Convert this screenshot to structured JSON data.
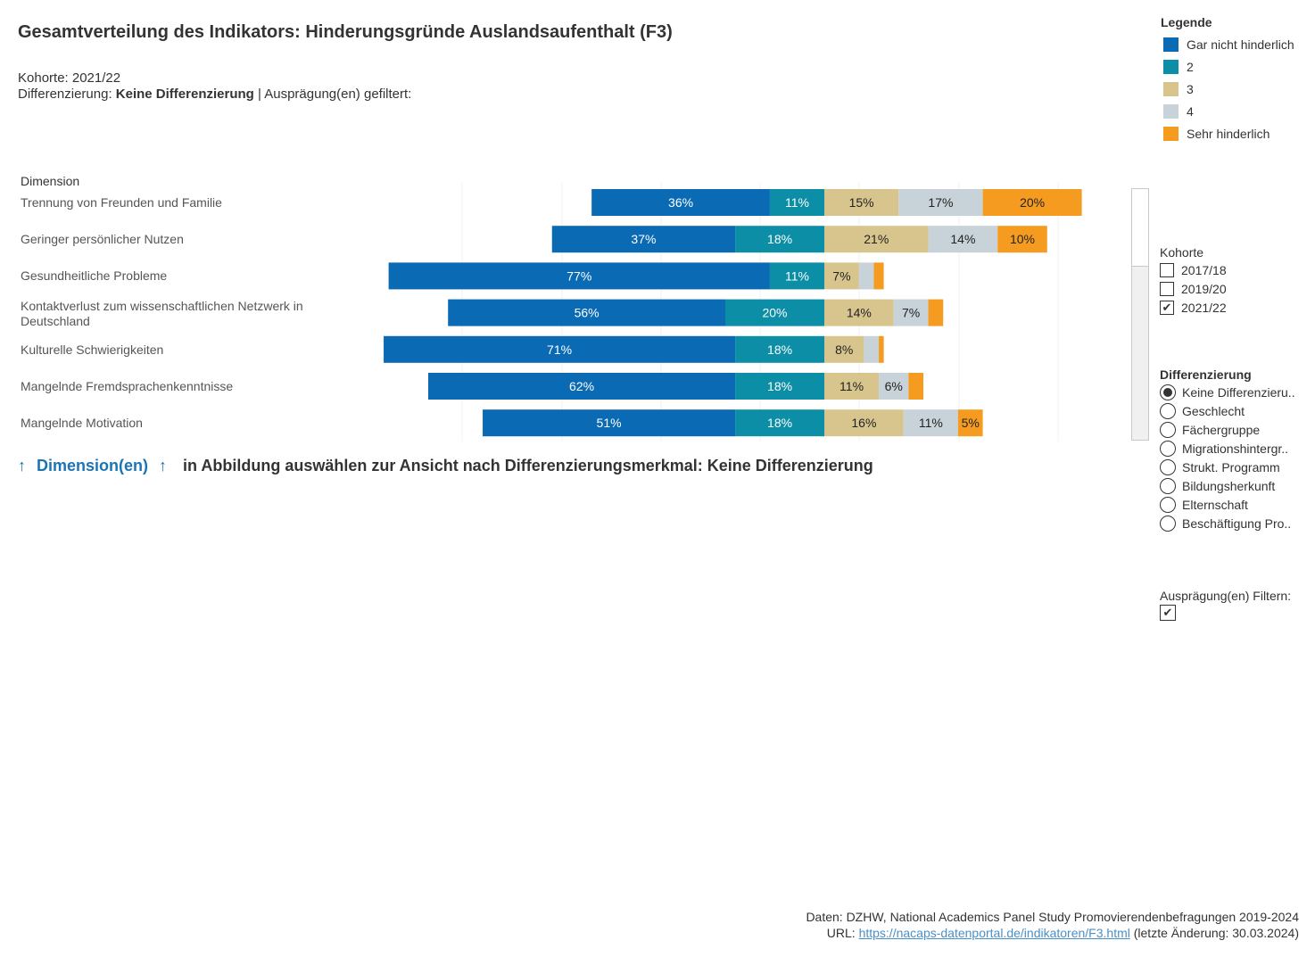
{
  "title": "Gesamtverteilung des Indikators: Hinderungsgründe Auslandsaufenthalt (F3)",
  "subtitle": {
    "cohort_prefix": "Kohorte: ",
    "cohort_value": "2021/22",
    "diff_prefix": "Differenzierung: ",
    "diff_value": "Keine Differenzierung",
    "diff_suffix": " | Ausprägung(en) gefiltert:"
  },
  "legend": {
    "title": "Legende",
    "items": [
      {
        "label": "Gar nicht hinderlich",
        "color": "#0a6ab4"
      },
      {
        "label": "2",
        "color": "#0b8ea6"
      },
      {
        "label": "3",
        "color": "#d8c58e"
      },
      {
        "label": "4",
        "color": "#c8d2d9"
      },
      {
        "label": "Sehr hinderlich",
        "color": "#f59c20"
      }
    ]
  },
  "chart_data": {
    "type": "bar",
    "orientation": "horizontal-stacked-diverging",
    "dimension_header": "Dimension",
    "categories": [
      [
        "Trennung von Freunden und Familie"
      ],
      [
        "Geringer persönlicher Nutzen"
      ],
      [
        "Gesundheitliche Probleme"
      ],
      [
        "Kontaktverlust zum wissenschaftlichen Netzwerk in",
        "Deutschland"
      ],
      [
        "Kulturelle Schwierigkeiten"
      ],
      [
        "Mangelnde Fremdsprachenkenntnisse"
      ],
      [
        "Mangelnde Motivation"
      ]
    ],
    "series": [
      {
        "name": "Gar nicht hinderlich",
        "values": [
          36,
          37,
          77,
          56,
          71,
          62,
          51
        ],
        "labels": [
          "36%",
          "37%",
          "77%",
          "56%",
          "71%",
          "62%",
          "51%"
        ],
        "label_color": "#ffffff"
      },
      {
        "name": "2",
        "values": [
          11,
          18,
          11,
          20,
          18,
          18,
          18
        ],
        "labels": [
          "11%",
          "18%",
          "11%",
          "20%",
          "18%",
          "18%",
          "18%"
        ],
        "label_color": "#ffffff"
      },
      {
        "name": "3",
        "values": [
          15,
          21,
          7,
          14,
          8,
          11,
          16
        ],
        "labels": [
          "15%",
          "21%",
          "7%",
          "14%",
          "8%",
          "11%",
          "16%"
        ],
        "label_color": "#222222"
      },
      {
        "name": "4",
        "values": [
          17,
          14,
          3,
          7,
          3,
          6,
          11
        ],
        "labels": [
          "17%",
          "14%",
          "",
          "7%",
          "",
          "6%",
          "11%"
        ],
        "label_color": "#222222"
      },
      {
        "name": "Sehr hinderlich",
        "values": [
          20,
          10,
          2,
          3,
          1,
          3,
          5
        ],
        "labels": [
          "20%",
          "10%",
          "",
          "",
          "",
          "",
          "5%"
        ],
        "label_color": "#222222"
      }
    ],
    "grid": true
  },
  "instruction": {
    "arrow": "↑",
    "link_text": "Dimension(en)",
    "text": "in Abbildung auswählen zur Ansicht nach Differenzierungsmerkmal: Keine Differenzierung"
  },
  "kohorte": {
    "title": "Kohorte",
    "options": [
      {
        "label": "2017/18",
        "checked": false
      },
      {
        "label": "2019/20",
        "checked": false
      },
      {
        "label": "2021/22",
        "checked": true
      }
    ]
  },
  "differenzierung": {
    "title": "Differenzierung",
    "options": [
      {
        "label": "Keine Differenzieru..",
        "selected": true
      },
      {
        "label": "Geschlecht",
        "selected": false
      },
      {
        "label": "Fächergruppe",
        "selected": false
      },
      {
        "label": "Migrationshintergr..",
        "selected": false
      },
      {
        "label": "Strukt. Programm",
        "selected": false
      },
      {
        "label": "Bildungsherkunft",
        "selected": false
      },
      {
        "label": "Elternschaft",
        "selected": false
      },
      {
        "label": "Beschäftigung Pro..",
        "selected": false
      }
    ]
  },
  "filter": {
    "title": "Ausprägung(en) Filtern:",
    "checked": true
  },
  "source": {
    "line1": "Daten: DZHW, National Academics Panel Study Promovierendenbefragungen 2019-2024",
    "url_prefix": "URL: ",
    "url": "https://nacaps-datenportal.de/indikatoren/F3.html",
    "url_suffix": " (letzte Änderung: 30.03.2024)"
  },
  "checkmark": "✔"
}
